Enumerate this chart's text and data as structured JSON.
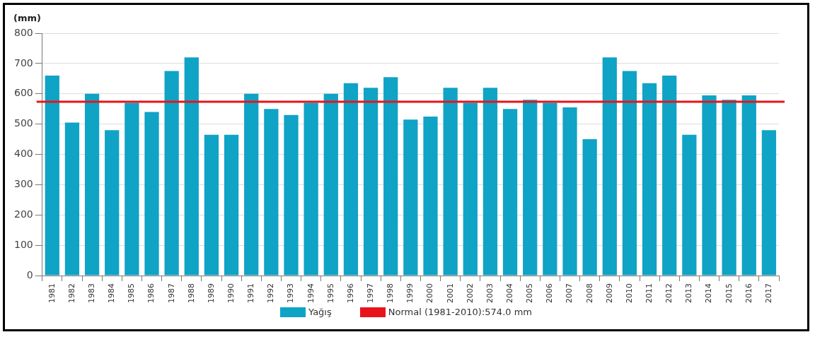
{
  "chart_data": {
    "type": "bar",
    "ylabel": "(mm)",
    "categories": [
      "1981",
      "1982",
      "1983",
      "1984",
      "1985",
      "1986",
      "1987",
      "1988",
      "1989",
      "1990",
      "1991",
      "1992",
      "1993",
      "1994",
      "1995",
      "1996",
      "1997",
      "1998",
      "1999",
      "2000",
      "2001",
      "2002",
      "2003",
      "2004",
      "2005",
      "2006",
      "2007",
      "2008",
      "2009",
      "2010",
      "2011",
      "2012",
      "2013",
      "2014",
      "2015",
      "2016",
      "2017"
    ],
    "series": [
      {
        "name": "Yağış",
        "color": "#0fa3c6",
        "values": [
          660,
          505,
          600,
          480,
          570,
          540,
          675,
          720,
          465,
          465,
          600,
          550,
          530,
          570,
          600,
          635,
          620,
          655,
          515,
          525,
          620,
          570,
          620,
          550,
          580,
          570,
          555,
          450,
          720,
          675,
          635,
          660,
          465,
          595,
          580,
          595,
          480
        ]
      }
    ],
    "ylim": [
      0,
      800
    ],
    "yticks": [
      0,
      100,
      200,
      300,
      400,
      500,
      600,
      700,
      800
    ],
    "ref_lines": [
      {
        "axis": "y",
        "value": 574,
        "label": "Normal (1981-2010):574.0 mm",
        "color": "#e8141b"
      }
    ],
    "grid": "y",
    "legend": "bottom"
  }
}
